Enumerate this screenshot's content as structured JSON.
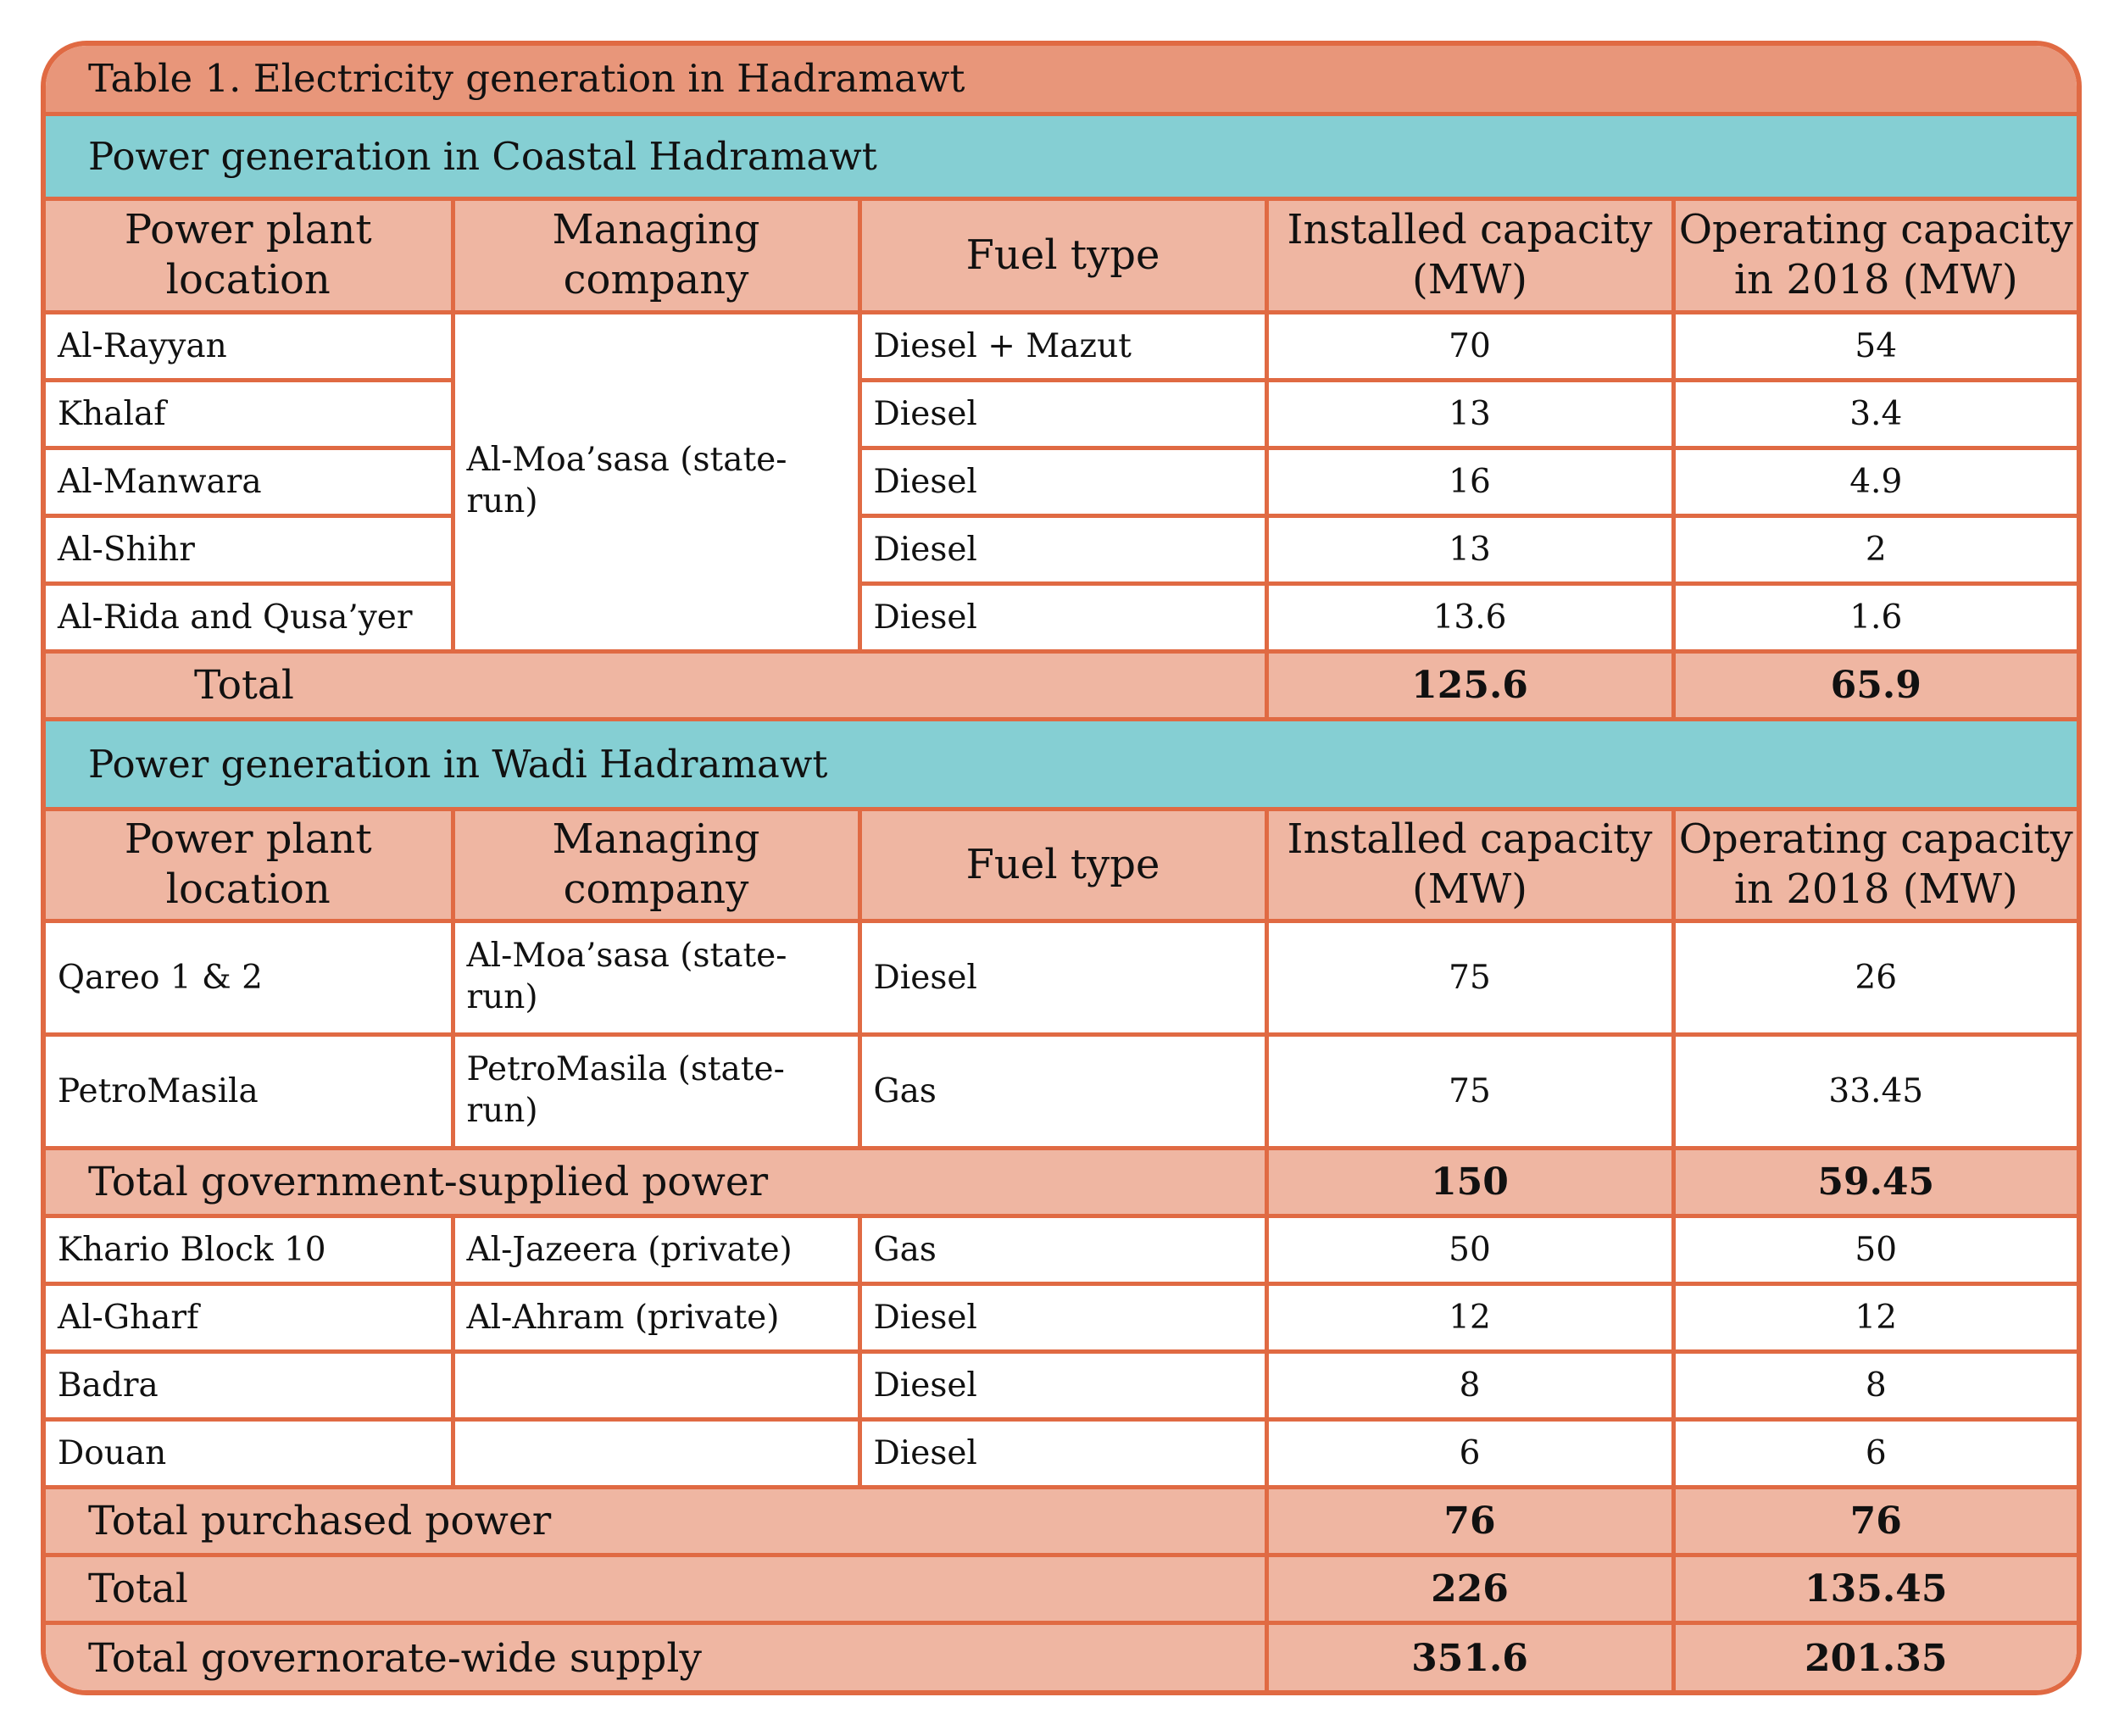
{
  "title": "Table 1. Electricity generation in Hadramawt",
  "columns": [
    "Power plant location",
    "Managing company",
    "Fuel type",
    "Installed capacity (MW)",
    "Operating capacity in 2018 (MW)"
  ],
  "coastal": {
    "heading": "Power generation in Coastal Hadramawt",
    "company": "Al-Moa’sasa (state-run)",
    "rows": [
      {
        "location": "Al-Rayyan",
        "fuel": "Diesel + Mazut",
        "installed": "70",
        "operating": "54"
      },
      {
        "location": "Khalaf",
        "fuel": "Diesel",
        "installed": "13",
        "operating": "3.4"
      },
      {
        "location": "Al-Manwara",
        "fuel": "Diesel",
        "installed": "16",
        "operating": "4.9"
      },
      {
        "location": "Al-Shihr",
        "fuel": "Diesel",
        "installed": "13",
        "operating": "2"
      },
      {
        "location": "Al-Rida and Qusa’yer",
        "fuel": "Diesel",
        "installed": "13.6",
        "operating": "1.6"
      }
    ],
    "total": {
      "label": "Total",
      "installed": "125.6",
      "operating": "65.9"
    }
  },
  "wadi": {
    "heading": "Power generation in Wadi Hadramawt",
    "government_rows": [
      {
        "location": "Qareo 1 & 2",
        "company": "Al-Moa’sasa (state-run)",
        "fuel": "Diesel",
        "installed": "75",
        "operating": "26"
      },
      {
        "location": "PetroMasila",
        "company": "PetroMasila (state-run)",
        "fuel": "Gas",
        "installed": "75",
        "operating": "33.45"
      }
    ],
    "government_total": {
      "label": "Total government-supplied power",
      "installed": "150",
      "operating": "59.45"
    },
    "purchased_rows": [
      {
        "location": "Khario Block 10",
        "company": "Al-Jazeera (private)",
        "fuel": "Gas",
        "installed": "50",
        "operating": "50"
      },
      {
        "location": "Al-Gharf",
        "company": "Al-Ahram (private)",
        "fuel": "Diesel",
        "installed": "12",
        "operating": "12"
      },
      {
        "location": "Badra",
        "company": "",
        "fuel": "Diesel",
        "installed": "8",
        "operating": "8"
      },
      {
        "location": "Douan",
        "company": "",
        "fuel": "Diesel",
        "installed": "6",
        "operating": "6"
      }
    ],
    "purchased_total": {
      "label": "Total purchased power",
      "installed": "76",
      "operating": "76"
    },
    "total": {
      "label": "Total",
      "installed": "226",
      "operating": "135.45"
    }
  },
  "governorate_total": {
    "label": "Total governorate-wide supply",
    "installed": "351.6",
    "operating": "201.35"
  }
}
